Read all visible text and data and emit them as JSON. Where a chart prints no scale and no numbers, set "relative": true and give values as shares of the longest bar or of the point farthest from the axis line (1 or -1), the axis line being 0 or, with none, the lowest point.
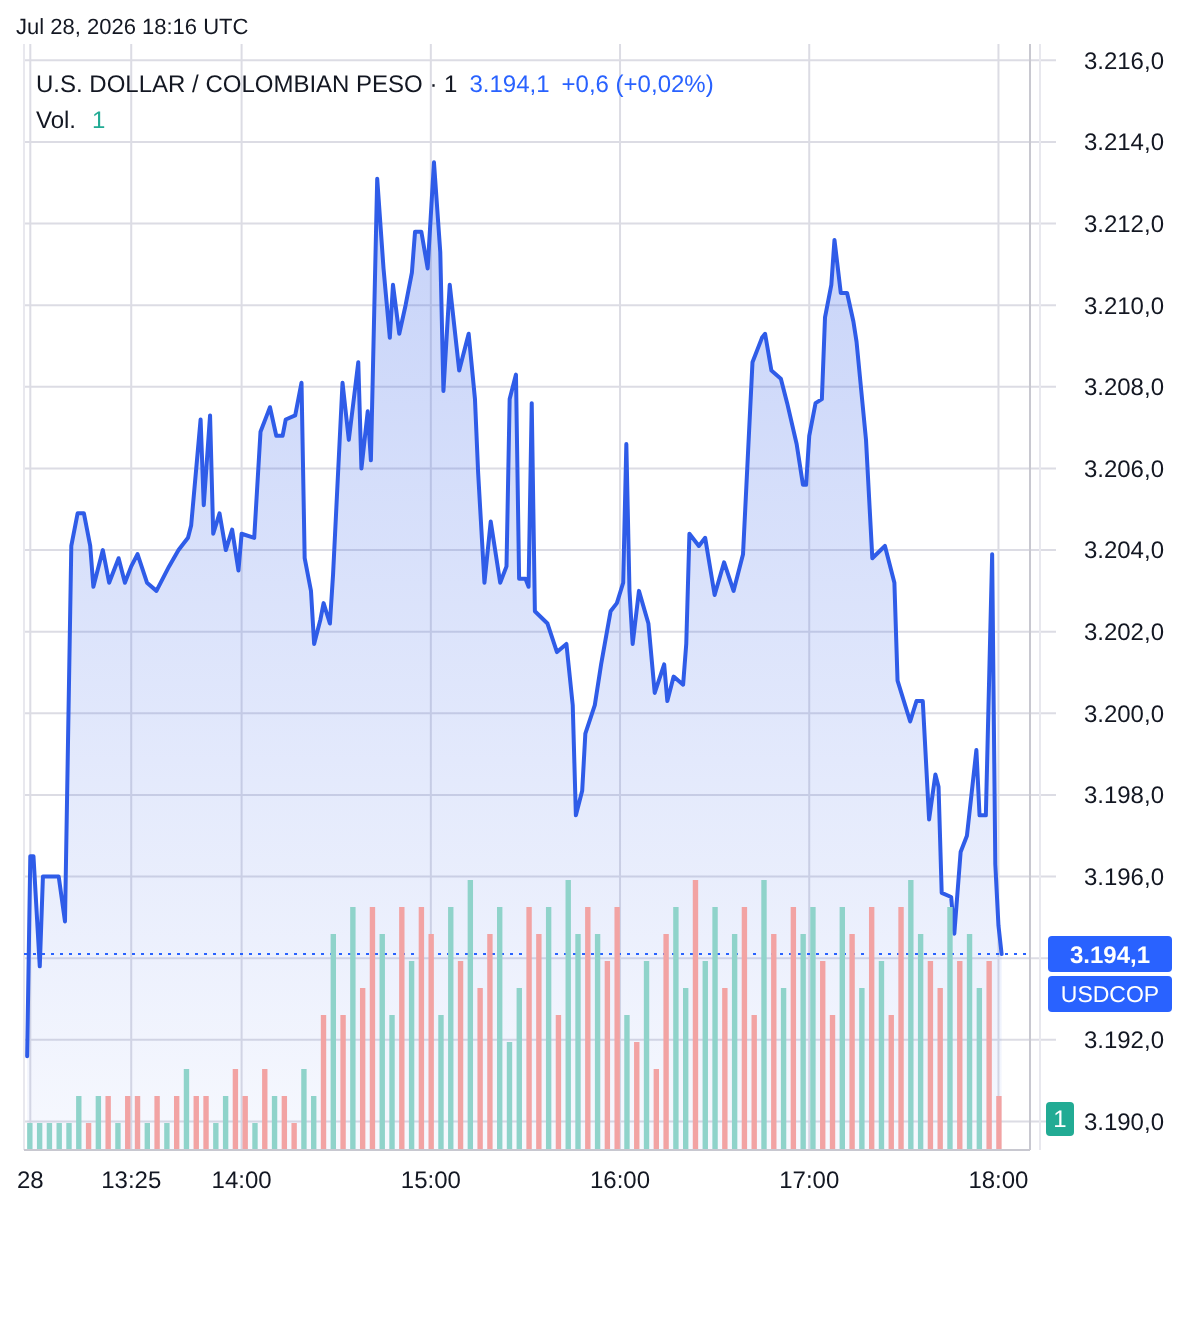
{
  "chart_data": [
    {
      "type": "area",
      "title": "U.S. DOLLAR / COLOMBIAN PESO · 1",
      "annotations": [
        "3.194,1",
        "+0,6 (+0,02%)",
        "Jul 28, 2026 18:16 UTC"
      ],
      "xlim": [
        "2026-07-28T12:51",
        "2026-07-28T18:10"
      ],
      "xticks": [
        {
          "value": "2026-07-28T12:53",
          "label": "28"
        },
        {
          "value": "2026-07-28T13:25",
          "label": "13:25"
        },
        {
          "value": "2026-07-28T14:00",
          "label": "14:00"
        },
        {
          "value": "2026-07-28T15:00",
          "label": "15:00"
        },
        {
          "value": "2026-07-28T16:00",
          "label": "16:00"
        },
        {
          "value": "2026-07-28T17:00",
          "label": "17:00"
        },
        {
          "value": "2026-07-28T18:00",
          "label": "18:00"
        }
      ],
      "ylim": [
        3189.3,
        3216.4
      ],
      "yticks": [
        {
          "value": 3190,
          "label": "3.190,0"
        },
        {
          "value": 3192,
          "label": "3.192,0"
        },
        {
          "value": 3194,
          "label": null
        },
        {
          "value": 3196,
          "label": "3.196,0"
        },
        {
          "value": 3198,
          "label": "3.198,0"
        },
        {
          "value": 3200,
          "label": "3.200,0"
        },
        {
          "value": 3202,
          "label": "3.202,0"
        },
        {
          "value": 3204,
          "label": "3.204,0"
        },
        {
          "value": 3206,
          "label": "3.206,0"
        },
        {
          "value": 3208,
          "label": "3.208,0"
        },
        {
          "value": 3210,
          "label": "3.210,0"
        },
        {
          "value": 3212,
          "label": "3.212,0"
        },
        {
          "value": 3214,
          "label": "3.214,0"
        },
        {
          "value": 3216,
          "label": "3.216,0"
        }
      ],
      "grid": true,
      "line_style": "solid",
      "ref_lines": [
        {
          "axis": "y",
          "value": 3194.1,
          "label": "USDCOP",
          "color": "#2962ff",
          "line_style": "dotted"
        }
      ],
      "series": [
        {
          "color": "#2f5ce8",
          "x": [
            "2026-07-28T12:52",
            "2026-07-28T12:53",
            "2026-07-28T12:54",
            "2026-07-28T12:56",
            "2026-07-28T12:57",
            "2026-07-28T13:02",
            "2026-07-28T13:04",
            "2026-07-28T13:06",
            "2026-07-28T13:08",
            "2026-07-28T13:10",
            "2026-07-28T13:12",
            "2026-07-28T13:13",
            "2026-07-28T13:16",
            "2026-07-28T13:18",
            "2026-07-28T13:21",
            "2026-07-28T13:23",
            "2026-07-28T13:25",
            "2026-07-28T13:27",
            "2026-07-28T13:30",
            "2026-07-28T13:33",
            "2026-07-28T13:37",
            "2026-07-28T13:40",
            "2026-07-28T13:43",
            "2026-07-28T13:44",
            "2026-07-28T13:47",
            "2026-07-28T13:48",
            "2026-07-28T13:50",
            "2026-07-28T13:51",
            "2026-07-28T13:53",
            "2026-07-28T13:55",
            "2026-07-28T13:57",
            "2026-07-28T13:59",
            "2026-07-28T14:00",
            "2026-07-28T14:04",
            "2026-07-28T14:06",
            "2026-07-28T14:08",
            "2026-07-28T14:09",
            "2026-07-28T14:11",
            "2026-07-28T14:13",
            "2026-07-28T14:14",
            "2026-07-28T14:17",
            "2026-07-28T14:19",
            "2026-07-28T14:20",
            "2026-07-28T14:22",
            "2026-07-28T14:23",
            "2026-07-28T14:25",
            "2026-07-28T14:26",
            "2026-07-28T14:28",
            "2026-07-28T14:29",
            "2026-07-28T14:32",
            "2026-07-28T14:34",
            "2026-07-28T14:37",
            "2026-07-28T14:38",
            "2026-07-28T14:40",
            "2026-07-28T14:41",
            "2026-07-28T14:43",
            "2026-07-28T14:45",
            "2026-07-28T14:47",
            "2026-07-28T14:48",
            "2026-07-28T14:50",
            "2026-07-28T14:52",
            "2026-07-28T14:54",
            "2026-07-28T14:55",
            "2026-07-28T14:57",
            "2026-07-28T14:59",
            "2026-07-28T15:01",
            "2026-07-28T15:03",
            "2026-07-28T15:04",
            "2026-07-28T15:06",
            "2026-07-28T15:09",
            "2026-07-28T15:12",
            "2026-07-28T15:14",
            "2026-07-28T15:15",
            "2026-07-28T15:17",
            "2026-07-28T15:19",
            "2026-07-28T15:22",
            "2026-07-28T15:24",
            "2026-07-28T15:25",
            "2026-07-28T15:27",
            "2026-07-28T15:28",
            "2026-07-28T15:30",
            "2026-07-28T15:31",
            "2026-07-28T15:32",
            "2026-07-28T15:33",
            "2026-07-28T15:37",
            "2026-07-28T15:40",
            "2026-07-28T15:43",
            "2026-07-28T15:45",
            "2026-07-28T15:46",
            "2026-07-28T15:48",
            "2026-07-28T15:49",
            "2026-07-28T15:52",
            "2026-07-28T15:54",
            "2026-07-28T15:57",
            "2026-07-28T15:59",
            "2026-07-28T16:01",
            "2026-07-28T16:02",
            "2026-07-28T16:03",
            "2026-07-28T16:04",
            "2026-07-28T16:06",
            "2026-07-28T16:09",
            "2026-07-28T16:11",
            "2026-07-28T16:14",
            "2026-07-28T16:15",
            "2026-07-28T16:17",
            "2026-07-28T16:20",
            "2026-07-28T16:21",
            "2026-07-28T16:22",
            "2026-07-28T16:25",
            "2026-07-28T16:27",
            "2026-07-28T16:30",
            "2026-07-28T16:33",
            "2026-07-28T16:36",
            "2026-07-28T16:39",
            "2026-07-28T16:42",
            "2026-07-28T16:45",
            "2026-07-28T16:46",
            "2026-07-28T16:48",
            "2026-07-28T16:51",
            "2026-07-28T16:53",
            "2026-07-28T16:56",
            "2026-07-28T16:58",
            "2026-07-28T16:59",
            "2026-07-28T17:00",
            "2026-07-28T17:02",
            "2026-07-28T17:04",
            "2026-07-28T17:05",
            "2026-07-28T17:07",
            "2026-07-28T17:08",
            "2026-07-28T17:10",
            "2026-07-28T17:12",
            "2026-07-28T17:14",
            "2026-07-28T17:15",
            "2026-07-28T17:18",
            "2026-07-28T17:20",
            "2026-07-28T17:24",
            "2026-07-28T17:27",
            "2026-07-28T17:28",
            "2026-07-28T17:32",
            "2026-07-28T17:34",
            "2026-07-28T17:36",
            "2026-07-28T17:38",
            "2026-07-28T17:40",
            "2026-07-28T17:41",
            "2026-07-28T17:42",
            "2026-07-28T17:45",
            "2026-07-28T17:46",
            "2026-07-28T17:48",
            "2026-07-28T17:50",
            "2026-07-28T17:53",
            "2026-07-28T17:54",
            "2026-07-28T17:56",
            "2026-07-28T17:58",
            "2026-07-28T17:59",
            "2026-07-28T18:00",
            "2026-07-28T18:01"
          ],
          "values": [
            3191.6,
            3196.5,
            3196.5,
            3193.8,
            3196.0,
            3196.0,
            3194.9,
            3204.1,
            3204.9,
            3204.9,
            3204.1,
            3203.1,
            3204.0,
            3203.2,
            3203.8,
            3203.2,
            3203.6,
            3203.9,
            3203.2,
            3203.0,
            3203.6,
            3204.0,
            3204.3,
            3204.6,
            3207.2,
            3205.1,
            3207.3,
            3204.4,
            3204.9,
            3204.0,
            3204.5,
            3203.5,
            3204.4,
            3204.3,
            3206.9,
            3207.3,
            3207.5,
            3206.8,
            3206.8,
            3207.2,
            3207.3,
            3208.1,
            3203.8,
            3203.0,
            3201.7,
            3202.3,
            3202.7,
            3202.2,
            3203.4,
            3208.1,
            3206.7,
            3208.6,
            3206.0,
            3207.4,
            3206.2,
            3213.1,
            3210.9,
            3209.2,
            3210.5,
            3209.3,
            3210.0,
            3210.8,
            3211.8,
            3211.8,
            3210.9,
            3213.5,
            3211.3,
            3207.9,
            3210.5,
            3208.4,
            3209.3,
            3207.7,
            3205.9,
            3203.2,
            3204.7,
            3203.2,
            3203.6,
            3207.7,
            3208.3,
            3203.3,
            3203.3,
            3203.1,
            3207.6,
            3202.5,
            3202.2,
            3201.5,
            3201.7,
            3200.2,
            3197.5,
            3198.1,
            3199.5,
            3200.2,
            3201.2,
            3202.5,
            3202.7,
            3203.2,
            3206.6,
            3203.0,
            3201.7,
            3203.0,
            3202.2,
            3200.5,
            3201.2,
            3200.3,
            3200.9,
            3200.7,
            3201.7,
            3204.4,
            3204.1,
            3204.3,
            3202.9,
            3203.7,
            3203.0,
            3203.9,
            3208.6,
            3209.2,
            3209.3,
            3208.4,
            3208.2,
            3207.6,
            3206.6,
            3205.6,
            3205.6,
            3206.8,
            3207.6,
            3207.7,
            3209.7,
            3210.5,
            3211.6,
            3210.3,
            3210.3,
            3209.6,
            3209.1,
            3206.7,
            3203.8,
            3204.1,
            3203.2,
            3200.8,
            3199.8,
            3200.3,
            3200.3,
            3197.4,
            3198.5,
            3198.2,
            3195.6,
            3195.5,
            3194.6,
            3196.6,
            3197.0,
            3199.1,
            3197.5,
            3197.5,
            3203.9,
            3196.3,
            3194.8,
            3194.1
          ]
        }
      ]
    },
    {
      "type": "bar",
      "relative": true,
      "title": "Vol.",
      "annotations": [
        "1"
      ],
      "categories": [
        null,
        null,
        null,
        null,
        null,
        null,
        null,
        null,
        null,
        null,
        null,
        null,
        null,
        null,
        null,
        null,
        null,
        null,
        null,
        null,
        null,
        null,
        null,
        null,
        null,
        null,
        null,
        null,
        null,
        null,
        null,
        null,
        null,
        null,
        null,
        null,
        null,
        null,
        null,
        null,
        null,
        null,
        null,
        null,
        null,
        null,
        null,
        null,
        null,
        null,
        null,
        null,
        null,
        null,
        null,
        null,
        null,
        null,
        null,
        null,
        null,
        null,
        null,
        null,
        null,
        null,
        null,
        null,
        null,
        null,
        null,
        null,
        null,
        null,
        null,
        null,
        null,
        null,
        null,
        null,
        null,
        null,
        null,
        null,
        null,
        null,
        null,
        null,
        null,
        null,
        null,
        null,
        null,
        null,
        null,
        null,
        null,
        null,
        null,
        null
      ],
      "values": [
        0.1,
        0.1,
        0.1,
        0.1,
        0.1,
        0.2,
        0.1,
        0.2,
        0.2,
        0.1,
        0.2,
        0.2,
        0.1,
        0.2,
        0.1,
        0.2,
        0.3,
        0.2,
        0.2,
        0.1,
        0.2,
        0.3,
        0.2,
        0.1,
        0.3,
        0.2,
        0.2,
        0.1,
        0.3,
        0.2,
        0.5,
        0.8,
        0.5,
        0.9,
        0.6,
        0.9,
        0.8,
        0.5,
        0.9,
        0.7,
        0.9,
        0.8,
        0.5,
        0.9,
        0.7,
        1.0,
        0.6,
        0.8,
        0.9,
        0.4,
        0.6,
        0.9,
        0.8,
        0.9,
        0.5,
        1.0,
        0.8,
        0.9,
        0.8,
        0.7,
        0.9,
        0.5,
        0.4,
        0.7,
        0.3,
        0.8,
        0.9,
        0.6,
        1.0,
        0.7,
        0.9,
        0.6,
        0.8,
        0.9,
        0.5,
        1.0,
        0.8,
        0.6,
        0.9,
        0.8,
        0.9,
        0.7,
        0.5,
        0.9,
        0.8,
        0.6,
        0.9,
        0.7,
        0.5,
        0.9,
        1.0,
        0.8,
        0.7,
        0.6,
        0.9,
        0.7,
        0.8,
        0.6,
        0.7,
        0.2
      ],
      "colors": [
        "#8fd3ca",
        "#8fd3ca",
        "#8fd3ca",
        "#8fd3ca",
        "#8fd3ca",
        "#8fd3ca",
        "#f2a3a3",
        "#8fd3ca",
        "#f2a3a3",
        "#8fd3ca",
        "#f2a3a3",
        "#f2a3a3",
        "#8fd3ca",
        "#f2a3a3",
        "#8fd3ca",
        "#f2a3a3",
        "#8fd3ca",
        "#f2a3a3",
        "#f2a3a3",
        "#8fd3ca",
        "#8fd3ca",
        "#f2a3a3",
        "#f2a3a3",
        "#8fd3ca",
        "#f2a3a3",
        "#8fd3ca",
        "#f2a3a3",
        "#f2a3a3",
        "#8fd3ca",
        "#8fd3ca",
        "#f2a3a3",
        "#8fd3ca",
        "#f2a3a3",
        "#8fd3ca",
        "#f2a3a3",
        "#f2a3a3",
        "#8fd3ca",
        "#8fd3ca",
        "#f2a3a3",
        "#8fd3ca",
        "#f2a3a3",
        "#f2a3a3",
        "#8fd3ca",
        "#8fd3ca",
        "#f2a3a3",
        "#8fd3ca",
        "#f2a3a3",
        "#f2a3a3",
        "#8fd3ca",
        "#8fd3ca",
        "#8fd3ca",
        "#f2a3a3",
        "#f2a3a3",
        "#8fd3ca",
        "#f2a3a3",
        "#8fd3ca",
        "#8fd3ca",
        "#f2a3a3",
        "#8fd3ca",
        "#f2a3a3",
        "#f2a3a3",
        "#8fd3ca",
        "#f2a3a3",
        "#8fd3ca",
        "#f2a3a3",
        "#f2a3a3",
        "#8fd3ca",
        "#8fd3ca",
        "#f2a3a3",
        "#8fd3ca",
        "#8fd3ca",
        "#f2a3a3",
        "#8fd3ca",
        "#f2a3a3",
        "#f2a3a3",
        "#8fd3ca",
        "#f2a3a3",
        "#8fd3ca",
        "#f2a3a3",
        "#8fd3ca",
        "#8fd3ca",
        "#f2a3a3",
        "#f2a3a3",
        "#8fd3ca",
        "#f2a3a3",
        "#8fd3ca",
        "#f2a3a3",
        "#8fd3ca",
        "#f2a3a3",
        "#f2a3a3",
        "#8fd3ca",
        "#8fd3ca",
        "#f2a3a3",
        "#f2a3a3",
        "#8fd3ca",
        "#f2a3a3",
        "#8fd3ca",
        "#8fd3ca",
        "#f2a3a3",
        "#f2a3a3"
      ]
    }
  ]
}
